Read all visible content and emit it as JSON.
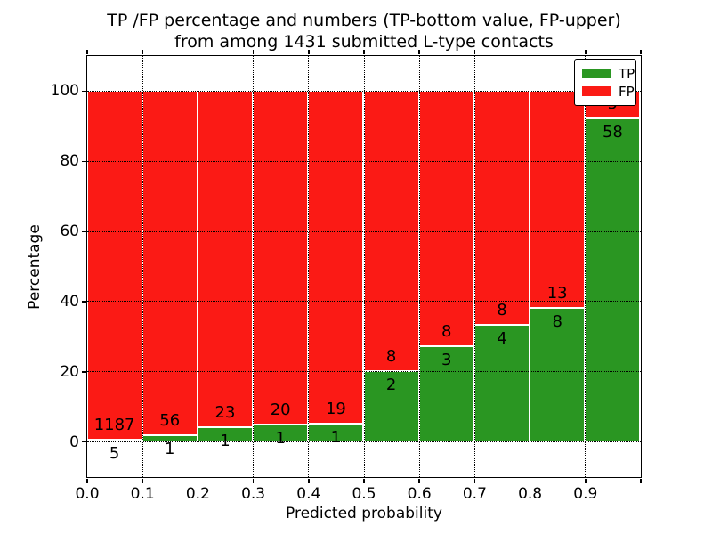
{
  "chart_data": {
    "type": "bar",
    "stacked": true,
    "normalized": "each bar scaled to 100%",
    "title_line1": "TP /FP percentage and numbers (TP-bottom value, FP-upper)",
    "title_line2": "from among 1431 submitted L-type contacts",
    "total_submitted_contacts": 1431,
    "xlabel": "Predicted probability",
    "ylabel": "Percentage",
    "bins": [
      "0.0-0.1",
      "0.1-0.2",
      "0.2-0.3",
      "0.3-0.4",
      "0.4-0.5",
      "0.5-0.6",
      "0.6-0.7",
      "0.7-0.8",
      "0.8-0.9",
      "0.9-1.0"
    ],
    "series": [
      {
        "name": "TP",
        "color": "#2a9622",
        "values": [
          5,
          1,
          1,
          1,
          1,
          2,
          3,
          4,
          8,
          58
        ]
      },
      {
        "name": "FP",
        "color": "#fb1a15",
        "values": [
          1187,
          56,
          23,
          20,
          19,
          8,
          8,
          8,
          13,
          5
        ]
      }
    ],
    "x_tick_labels": [
      "0.0",
      "0.1",
      "0.2",
      "0.3",
      "0.4",
      "0.5",
      "0.6",
      "0.7",
      "0.8",
      "0.9"
    ],
    "y_ticks": [
      0,
      20,
      40,
      60,
      80,
      100
    ],
    "y_tick_labels": [
      "0",
      "20",
      "40",
      "60",
      "80",
      "100"
    ],
    "xlim": [
      0.0,
      1.0
    ],
    "ylim": [
      -10,
      110
    ],
    "grid": "dotted black, horizontal at y ticks and vertical at bin edges, drawn over bars",
    "legend_position": "upper right"
  }
}
